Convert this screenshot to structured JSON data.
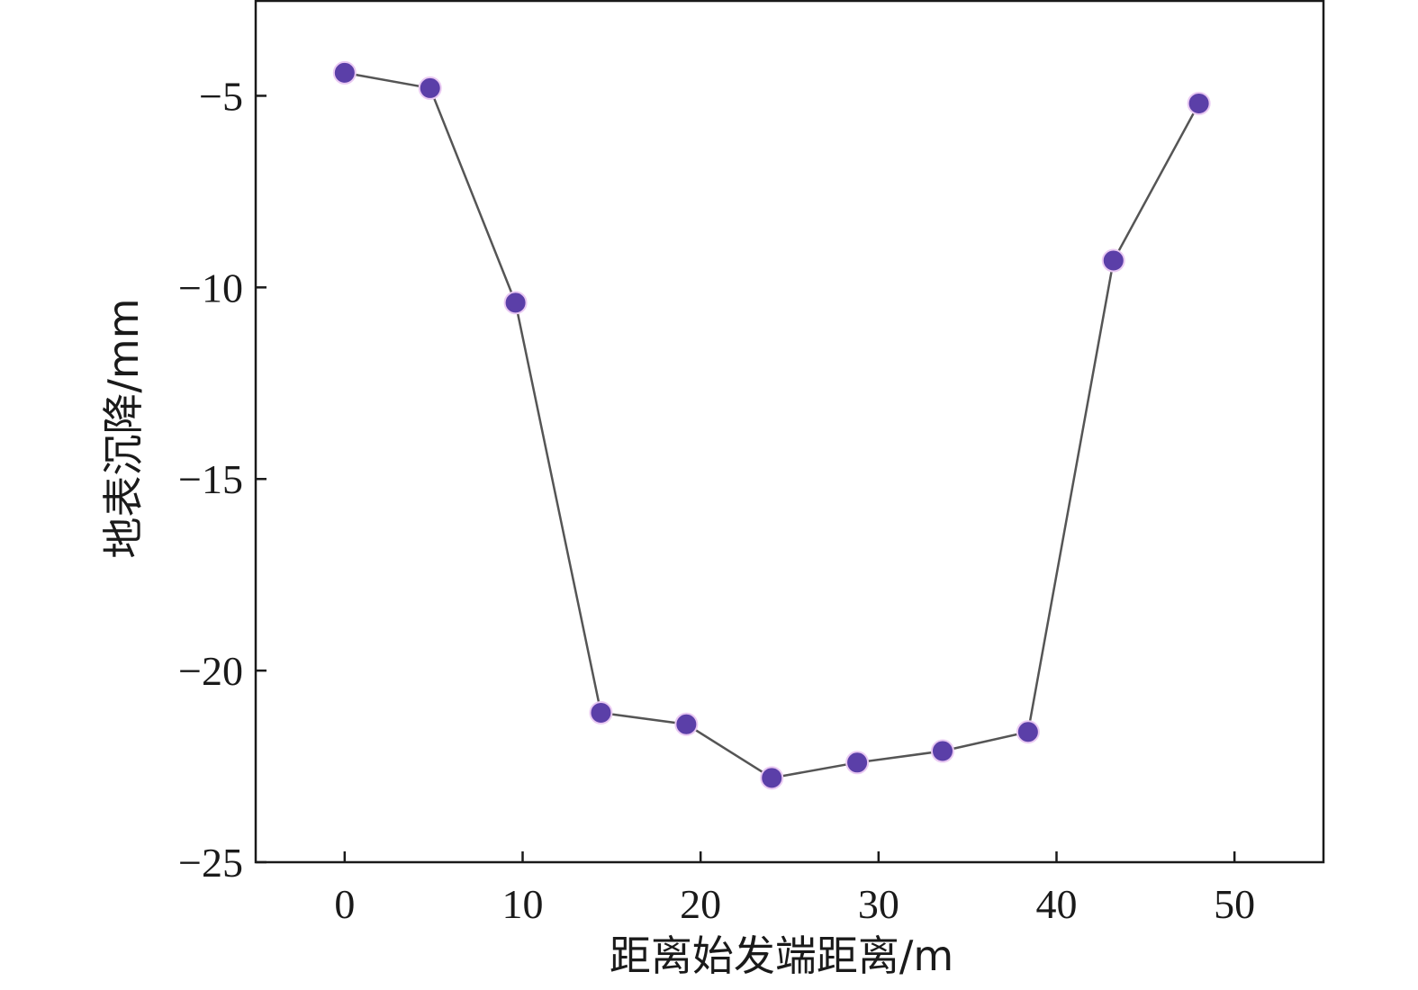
{
  "chart_data": {
    "type": "line",
    "xlabel": "距离始发端距离/m",
    "ylabel": "地表沉降/mm",
    "xlim": [
      -5,
      55
    ],
    "ylim": [
      -25,
      -2.5
    ],
    "x_ticks": [
      0,
      10,
      20,
      30,
      40,
      50
    ],
    "y_ticks": [
      -5,
      -10,
      -15,
      -20,
      -25
    ],
    "x_tick_labels": [
      "0",
      "10",
      "20",
      "30",
      "40",
      "50"
    ],
    "y_tick_labels": [
      "−5",
      "−10",
      "−15",
      "−20",
      "−25"
    ],
    "grid": false,
    "series": [
      {
        "x": [
          0,
          4.8,
          9.6,
          14.4,
          19.2,
          24.0,
          28.8,
          33.6,
          38.4,
          43.2,
          48.0
        ],
        "y": [
          -4.4,
          -4.8,
          -10.4,
          -21.1,
          -21.4,
          -22.8,
          -22.4,
          -22.1,
          -21.6,
          -9.3,
          -5.2
        ]
      }
    ],
    "colors": {
      "marker": "#5b3fa8",
      "line": "#555555"
    }
  }
}
